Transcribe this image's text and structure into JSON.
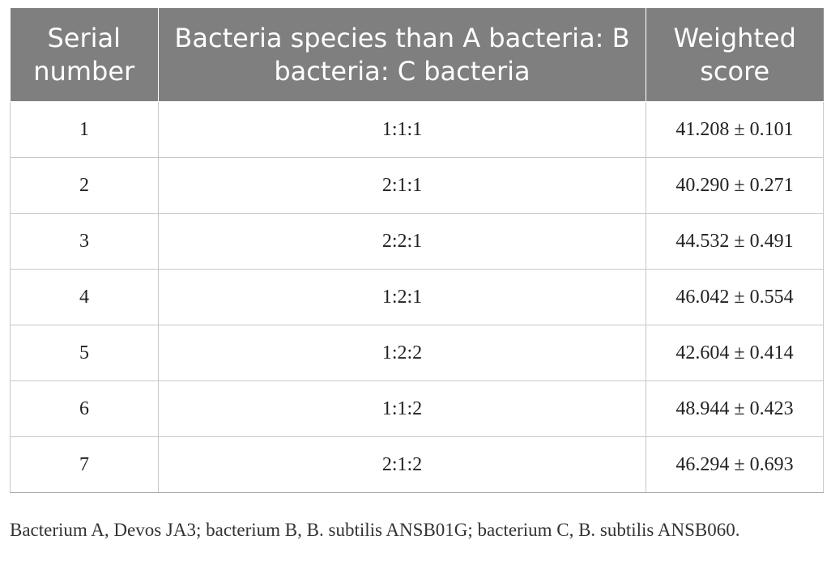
{
  "table": {
    "headers": [
      "Serial number",
      "Bacteria species than A bacteria: B bacteria: C bacteria",
      "Weighted score"
    ],
    "rows": [
      [
        "1",
        "1:1:1",
        "41.208 ± 0.101"
      ],
      [
        "2",
        "2:1:1",
        "40.290 ± 0.271"
      ],
      [
        "3",
        "2:2:1",
        "44.532 ± 0.491"
      ],
      [
        "4",
        "1:2:1",
        "46.042 ± 0.554"
      ],
      [
        "5",
        "1:2:2",
        "42.604 ± 0.414"
      ],
      [
        "6",
        "1:1:2",
        "48.944 ± 0.423"
      ],
      [
        "7",
        "2:1:2",
        "46.294 ± 0.693"
      ]
    ]
  },
  "footnote": "Bacterium A, Devos JA3; bacterium B, B. subtilis ANSB01G; bacterium C, B. subtilis ANSB060."
}
